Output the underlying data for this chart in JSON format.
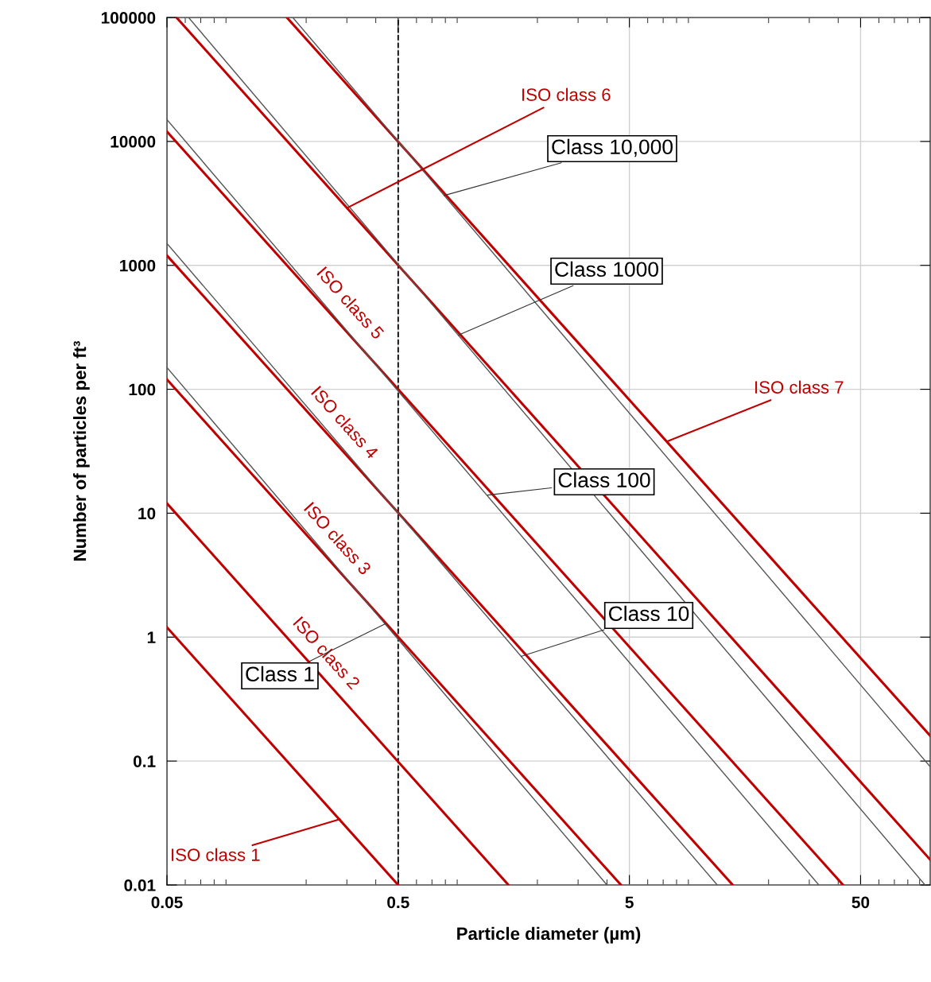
{
  "chart_data": {
    "type": "line",
    "xlabel": "Particle diameter (µm)",
    "ylabel": "Number of particles per ft³",
    "log": "xy",
    "xlim": [
      0.05,
      100
    ],
    "xticks": [
      0.05,
      0.5,
      5,
      50
    ],
    "ylim": [
      0.01,
      100000
    ],
    "yticks": [
      0.01,
      0.1,
      1,
      10,
      100,
      1000,
      10000,
      100000
    ],
    "grid": true,
    "marker": "none",
    "line_style": "solid",
    "ref_lines": [
      {
        "axis": "x",
        "value": 0.5,
        "color": "#000000",
        "line_style": "dashed"
      }
    ],
    "series": [
      {
        "color": "#c00000",
        "x": [
          0.05,
          0.5
        ],
        "values": [
          1.2,
          0.01
        ]
      },
      {
        "name": "ISO class 2",
        "color": "#c00000",
        "x": [
          0.05,
          1.5
        ],
        "values": [
          12,
          0.01
        ]
      },
      {
        "name": "ISO class 3",
        "color": "#c00000",
        "x": [
          0.05,
          4.6
        ],
        "values": [
          120,
          0.01
        ]
      },
      {
        "name": "ISO class 4",
        "color": "#c00000",
        "x": [
          0.05,
          14
        ],
        "values": [
          1200,
          0.01
        ]
      },
      {
        "name": "ISO class 5",
        "color": "#c00000",
        "x": [
          0.05,
          42
        ],
        "values": [
          12000,
          0.01
        ]
      },
      {
        "color": "#c00000",
        "x": [
          0.055,
          100
        ],
        "values": [
          100000,
          0.016
        ]
      },
      {
        "color": "#c00000",
        "x": [
          0.165,
          100
        ],
        "values": [
          100000,
          0.16
        ]
      },
      {
        "color": "#555555",
        "x": [
          0.05,
          4
        ],
        "values": [
          150,
          0.01
        ]
      },
      {
        "color": "#555555",
        "x": [
          0.05,
          12
        ],
        "values": [
          1500,
          0.01
        ]
      },
      {
        "color": "#555555",
        "x": [
          0.05,
          33
        ],
        "values": [
          15000,
          0.01
        ]
      },
      {
        "color": "#555555",
        "x": [
          0.062,
          95
        ],
        "values": [
          100000,
          0.01
        ]
      },
      {
        "color": "#555555",
        "x": [
          0.175,
          100
        ],
        "values": [
          100000,
          0.09
        ]
      }
    ],
    "annotations": [
      {
        "text": "ISO class 1",
        "x": 0.28,
        "y": 0.034
      },
      {
        "text": "ISO class 6",
        "x": 0.3,
        "y": 2900
      },
      {
        "text": "ISO class 7",
        "x": 7.3,
        "y": 38
      },
      {
        "text": "Class 1",
        "x": 0.44,
        "y": 1.28
      },
      {
        "text": "Class 10",
        "x": 1.7,
        "y": 0.7
      },
      {
        "text": "Class 100",
        "x": 1.22,
        "y": 14
      },
      {
        "text": "Class 1000",
        "x": 0.91,
        "y": 273
      },
      {
        "text": "Class 10,000",
        "x": 0.79,
        "y": 3660
      }
    ]
  }
}
